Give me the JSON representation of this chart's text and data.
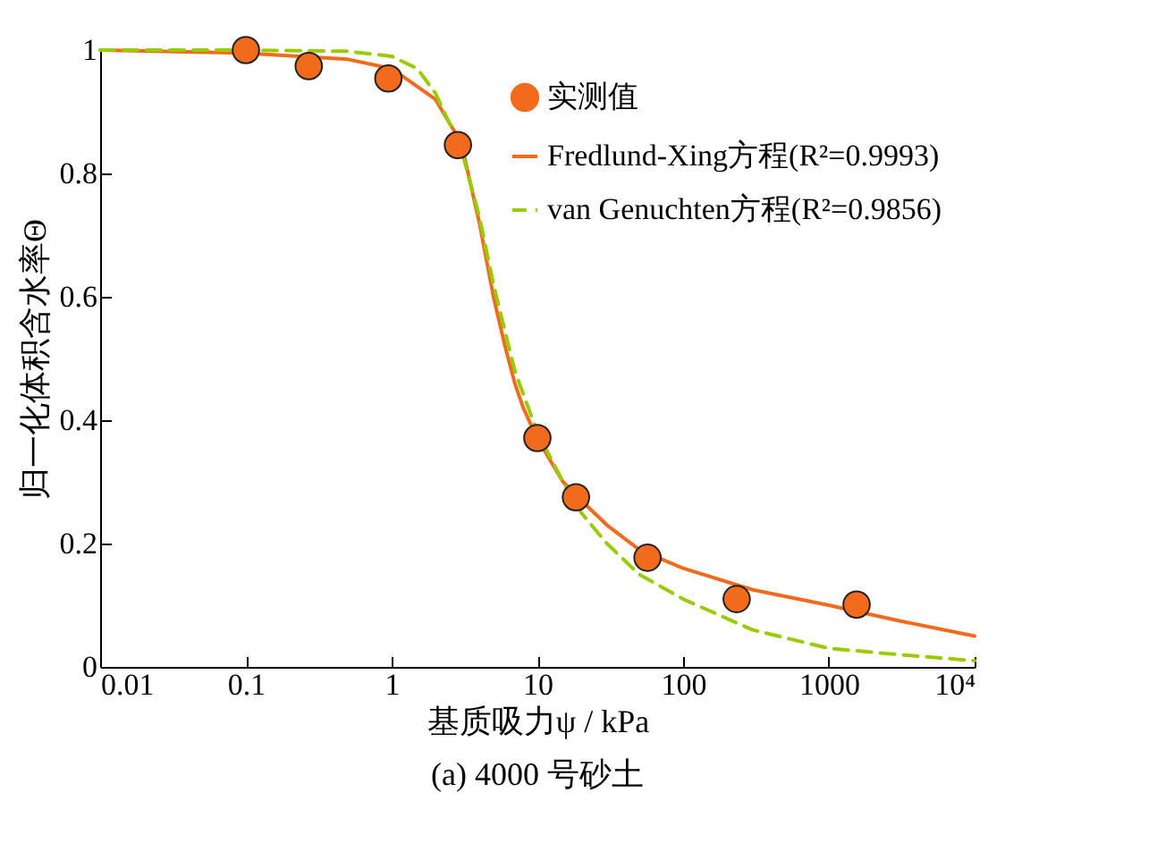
{
  "chart_data": {
    "type": "scatter",
    "xlabel": "基质吸力ψ / kPa",
    "ylabel": "归一化体积含水率Θ",
    "annotations": [
      "(a) 4000 号砂土"
    ],
    "log": "x",
    "xlim": [
      0.01,
      10000
    ],
    "ylim": [
      0,
      1
    ],
    "xticks": [
      0.01,
      0.1,
      1,
      10,
      100,
      1000,
      {
        "value": 10000,
        "label": "10⁴"
      }
    ],
    "yticks": [
      0,
      0.2,
      0.4,
      0.6,
      0.8,
      1
    ],
    "legend": "top right",
    "series": [
      {
        "name": "实测值",
        "marker": "circle",
        "color": "#f26b1d",
        "x": [
          0.1,
          0.27,
          0.95,
          2.85,
          10,
          18.4,
          57,
          233,
          1550
        ],
        "values": [
          1.0,
          0.974,
          0.954,
          0.846,
          0.371,
          0.275,
          0.177,
          0.11,
          0.101
        ]
      },
      {
        "name": "Fredlund-Xing方程(R²=0.9993)",
        "type": "line",
        "line_style": "solid",
        "color": "#f26b1d",
        "x": [
          0.01,
          0.1,
          0.5,
          1,
          2,
          3,
          4,
          5,
          6,
          7,
          8,
          10,
          15,
          20,
          30,
          50,
          100,
          300,
          1000,
          3000,
          10000
        ],
        "values": [
          1.0,
          0.995,
          0.985,
          0.97,
          0.92,
          0.85,
          0.72,
          0.6,
          0.52,
          0.46,
          0.42,
          0.37,
          0.3,
          0.27,
          0.23,
          0.19,
          0.16,
          0.125,
          0.1,
          0.075,
          0.05
        ]
      },
      {
        "name": "van Genuchten方程(R²=0.9856)",
        "type": "line",
        "line_style": "dashed",
        "color": "#99cc00",
        "x": [
          0.01,
          0.1,
          0.5,
          1,
          1.5,
          2,
          3,
          4,
          5,
          7,
          10,
          15,
          20,
          30,
          50,
          100,
          300,
          1000,
          3000,
          10000
        ],
        "values": [
          1.0,
          1.0,
          0.998,
          0.99,
          0.97,
          0.93,
          0.84,
          0.73,
          0.62,
          0.48,
          0.38,
          0.3,
          0.25,
          0.2,
          0.15,
          0.11,
          0.06,
          0.03,
          0.02,
          0.01
        ]
      }
    ]
  }
}
